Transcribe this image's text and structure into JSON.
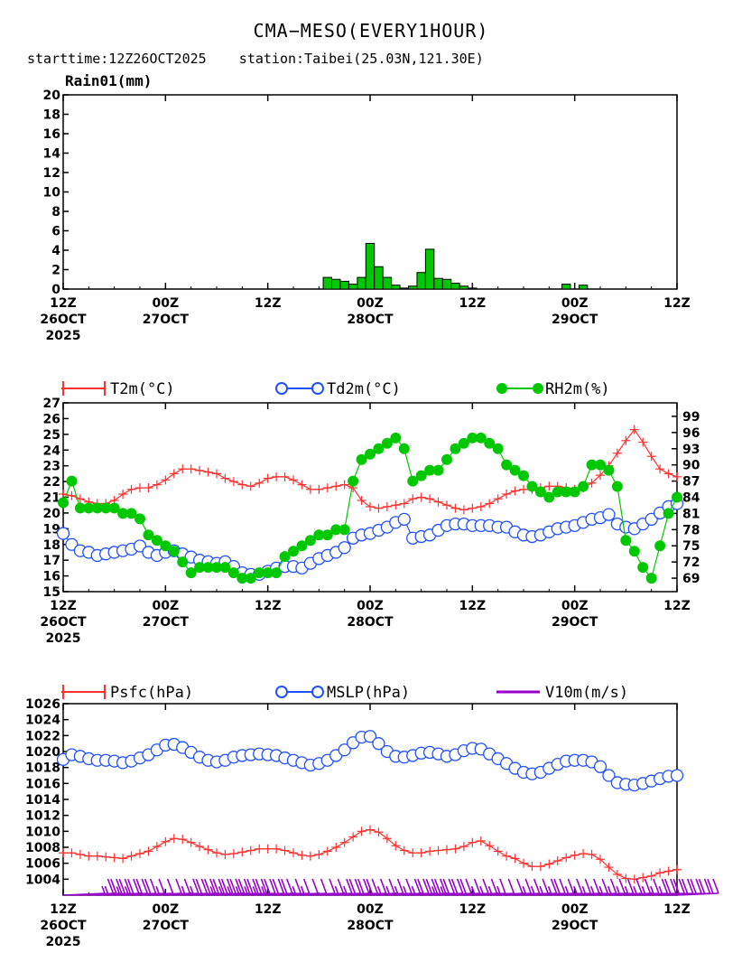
{
  "header": {
    "title": "CMA−MESO(EVERY1HOUR)",
    "subtitle": "starttime:12Z26OCT2025    station:Taibei(25.03N,121.30E)"
  },
  "time_axis": {
    "ticks": [
      {
        "hour": 0,
        "l1": "12Z",
        "l2": "26OCT",
        "l3": "2025"
      },
      {
        "hour": 12,
        "l1": "00Z",
        "l2": "27OCT",
        "l3": ""
      },
      {
        "hour": 24,
        "l1": "12Z",
        "l2": "",
        "l3": ""
      },
      {
        "hour": 36,
        "l1": "00Z",
        "l2": "28OCT",
        "l3": ""
      },
      {
        "hour": 48,
        "l1": "12Z",
        "l2": "",
        "l3": ""
      },
      {
        "hour": 60,
        "l1": "00Z",
        "l2": "29OCT",
        "l3": ""
      },
      {
        "hour": 72,
        "l1": "12Z",
        "l2": "",
        "l3": ""
      }
    ]
  },
  "chart_data": [
    {
      "type": "bar",
      "ylabel": "Rain01(mm)",
      "ylim": [
        0,
        20
      ],
      "yticks": [
        0,
        2,
        4,
        6,
        8,
        10,
        12,
        14,
        16,
        18,
        20
      ],
      "xlim": [
        0,
        72
      ],
      "bar_color": "#00c800",
      "x": [
        31,
        32,
        33,
        34,
        35,
        36,
        37,
        38,
        39,
        40,
        41,
        42,
        43,
        44,
        45,
        46,
        47,
        48,
        59,
        61
      ],
      "values": [
        1.2,
        1.0,
        0.8,
        0.5,
        1.2,
        4.7,
        2.3,
        1.2,
        0.4,
        0.1,
        0.3,
        1.7,
        4.1,
        1.1,
        1.0,
        0.6,
        0.3,
        0.1,
        0.5,
        0.4
      ]
    },
    {
      "type": "line",
      "xlim": [
        0,
        72
      ],
      "ylim_left": [
        15,
        27
      ],
      "yticks_left": [
        15,
        16,
        17,
        18,
        19,
        20,
        21,
        22,
        23,
        24,
        25,
        26,
        27
      ],
      "ylim_right": [
        66.5,
        101.5
      ],
      "yticks_right": [
        69,
        72,
        75,
        78,
        81,
        84,
        87,
        90,
        93,
        96,
        99
      ],
      "x": [
        0,
        1,
        2,
        3,
        4,
        5,
        6,
        7,
        8,
        9,
        10,
        11,
        12,
        13,
        14,
        15,
        16,
        17,
        18,
        19,
        20,
        21,
        22,
        23,
        24,
        25,
        26,
        27,
        28,
        29,
        30,
        31,
        32,
        33,
        34,
        35,
        36,
        37,
        38,
        39,
        40,
        41,
        42,
        43,
        44,
        45,
        46,
        47,
        48,
        49,
        50,
        51,
        52,
        53,
        54,
        55,
        56,
        57,
        58,
        59,
        60,
        61,
        62,
        63,
        64,
        65,
        66,
        67,
        68,
        69,
        70,
        71,
        72
      ],
      "series": [
        {
          "name": "T2m(°C)",
          "axis": "left",
          "color": "#ff3030",
          "marker": "cross",
          "values": [
            21.2,
            21.1,
            20.9,
            20.7,
            20.6,
            20.6,
            20.8,
            21.2,
            21.5,
            21.6,
            21.6,
            21.8,
            22.1,
            22.5,
            22.8,
            22.8,
            22.7,
            22.6,
            22.5,
            22.2,
            22.0,
            21.8,
            21.7,
            21.9,
            22.2,
            22.3,
            22.3,
            22.1,
            21.8,
            21.5,
            21.5,
            21.6,
            21.7,
            21.8,
            21.6,
            20.8,
            20.4,
            20.3,
            20.4,
            20.5,
            20.6,
            20.9,
            21.0,
            20.9,
            20.7,
            20.5,
            20.3,
            20.2,
            20.3,
            20.4,
            20.6,
            20.9,
            21.2,
            21.4,
            21.5,
            21.5,
            21.6,
            21.7,
            21.7,
            21.6,
            21.5,
            21.6,
            21.9,
            22.4,
            23.0,
            23.8,
            24.6,
            25.3,
            24.5,
            23.6,
            22.8,
            22.5,
            22.3
          ]
        },
        {
          "name": "Td2m(°C)",
          "axis": "left",
          "color": "#2050ff",
          "marker": "circle",
          "values": [
            18.7,
            18.0,
            17.6,
            17.5,
            17.3,
            17.4,
            17.5,
            17.6,
            17.7,
            17.9,
            17.5,
            17.3,
            17.5,
            17.6,
            17.4,
            17.2,
            17.0,
            16.9,
            16.8,
            16.9,
            16.6,
            16.2,
            16.1,
            16.1,
            16.3,
            16.5,
            16.6,
            16.6,
            16.5,
            16.8,
            17.1,
            17.3,
            17.5,
            17.8,
            18.4,
            18.6,
            18.7,
            18.9,
            19.1,
            19.4,
            19.6,
            18.4,
            18.5,
            18.6,
            18.9,
            19.2,
            19.3,
            19.3,
            19.2,
            19.2,
            19.2,
            19.1,
            19.1,
            18.8,
            18.6,
            18.5,
            18.6,
            18.8,
            19.0,
            19.1,
            19.2,
            19.4,
            19.6,
            19.7,
            19.9,
            19.3,
            19.1,
            19.0,
            19.3,
            19.6,
            20.0,
            20.4,
            20.6
          ]
        },
        {
          "name": "RH2m(%)",
          "axis": "right",
          "color": "#00c800",
          "marker": "dot",
          "values": [
            83,
            87,
            82,
            82,
            82,
            82,
            82,
            81,
            81,
            80,
            77,
            76,
            75,
            74,
            72,
            70,
            71,
            71,
            71,
            71,
            70,
            69,
            69,
            70,
            70,
            70,
            73,
            74,
            75,
            76,
            77,
            77,
            78,
            78,
            87,
            91,
            92,
            93,
            94,
            95,
            93,
            87,
            88,
            89,
            89,
            91,
            93,
            94,
            95,
            95,
            94,
            93,
            90,
            89,
            88,
            86,
            85,
            84,
            85,
            85,
            85,
            86,
            90,
            90,
            89,
            86,
            76,
            74,
            71,
            69,
            75,
            81,
            84
          ]
        }
      ]
    },
    {
      "type": "line",
      "xlim": [
        0,
        72
      ],
      "ylim_left": [
        1002,
        1026
      ],
      "yticks_left": [
        1004,
        1006,
        1008,
        1010,
        1012,
        1014,
        1016,
        1018,
        1020,
        1022,
        1024,
        1026
      ],
      "x": [
        0,
        1,
        2,
        3,
        4,
        5,
        6,
        7,
        8,
        9,
        10,
        11,
        12,
        13,
        14,
        15,
        16,
        17,
        18,
        19,
        20,
        21,
        22,
        23,
        24,
        25,
        26,
        27,
        28,
        29,
        30,
        31,
        32,
        33,
        34,
        35,
        36,
        37,
        38,
        39,
        40,
        41,
        42,
        43,
        44,
        45,
        46,
        47,
        48,
        49,
        50,
        51,
        52,
        53,
        54,
        55,
        56,
        57,
        58,
        59,
        60,
        61,
        62,
        63,
        64,
        65,
        66,
        67,
        68,
        69,
        70,
        71,
        72
      ],
      "series": [
        {
          "name": "Psfc(hPa)",
          "axis": "left",
          "color": "#ff3030",
          "marker": "cross",
          "values": [
            1007.3,
            1007.3,
            1007.1,
            1006.9,
            1006.9,
            1006.8,
            1006.7,
            1006.6,
            1006.9,
            1007.2,
            1007.5,
            1008.1,
            1008.7,
            1009.1,
            1009.0,
            1008.6,
            1008.1,
            1007.7,
            1007.3,
            1007.1,
            1007.2,
            1007.4,
            1007.6,
            1007.8,
            1007.8,
            1007.8,
            1007.6,
            1007.3,
            1007.0,
            1006.9,
            1007.1,
            1007.5,
            1008.0,
            1008.6,
            1009.3,
            1010.0,
            1010.2,
            1009.9,
            1009.1,
            1008.2,
            1007.6,
            1007.3,
            1007.3,
            1007.5,
            1007.6,
            1007.7,
            1007.8,
            1008.1,
            1008.6,
            1008.8,
            1008.2,
            1007.5,
            1006.9,
            1006.6,
            1006.0,
            1005.6,
            1005.6,
            1005.9,
            1006.3,
            1006.7,
            1007.0,
            1007.2,
            1007.1,
            1006.5,
            1005.5,
            1004.6,
            1004.1,
            1004.0,
            1004.2,
            1004.4,
            1004.8,
            1005.0,
            1005.2
          ]
        },
        {
          "name": "MSLP(hPa)",
          "axis": "left",
          "color": "#2050ff",
          "marker": "circle",
          "values": [
            1019.0,
            1019.6,
            1019.4,
            1019.1,
            1018.9,
            1018.9,
            1018.8,
            1018.6,
            1018.8,
            1019.2,
            1019.6,
            1020.2,
            1020.8,
            1020.9,
            1020.5,
            1019.9,
            1019.3,
            1018.9,
            1018.7,
            1018.9,
            1019.3,
            1019.5,
            1019.6,
            1019.7,
            1019.6,
            1019.5,
            1019.2,
            1018.9,
            1018.6,
            1018.3,
            1018.5,
            1018.9,
            1019.5,
            1020.2,
            1021.1,
            1021.8,
            1021.9,
            1021.0,
            1020.0,
            1019.4,
            1019.3,
            1019.5,
            1019.8,
            1019.9,
            1019.7,
            1019.4,
            1019.6,
            1020.1,
            1020.4,
            1020.3,
            1019.7,
            1019.1,
            1018.5,
            1017.9,
            1017.4,
            1017.2,
            1017.4,
            1017.9,
            1018.4,
            1018.8,
            1018.9,
            1018.9,
            1018.7,
            1018.1,
            1017.0,
            1016.1,
            1015.9,
            1015.8,
            1016.0,
            1016.3,
            1016.6,
            1016.9,
            1017.0
          ]
        },
        {
          "name": "V10m(m/s)",
          "axis": "none",
          "color": "#9900cc",
          "marker": "barb",
          "speed": [
            3,
            6,
            8,
            10,
            10,
            9,
            8,
            6,
            5,
            5,
            6,
            7,
            8,
            9,
            10,
            11,
            11,
            11,
            11,
            11,
            10,
            9,
            8,
            7,
            6,
            5,
            5,
            5,
            6,
            7,
            8,
            8,
            8,
            7,
            7,
            7,
            7,
            7,
            8,
            9,
            10,
            10,
            9,
            8,
            7,
            6,
            6,
            6,
            5,
            5,
            6,
            6,
            7,
            7,
            8,
            7,
            7,
            7,
            7,
            7,
            6,
            6,
            6,
            7,
            7,
            7,
            7,
            8,
            8,
            8,
            9,
            9,
            9
          ]
        }
      ]
    }
  ]
}
